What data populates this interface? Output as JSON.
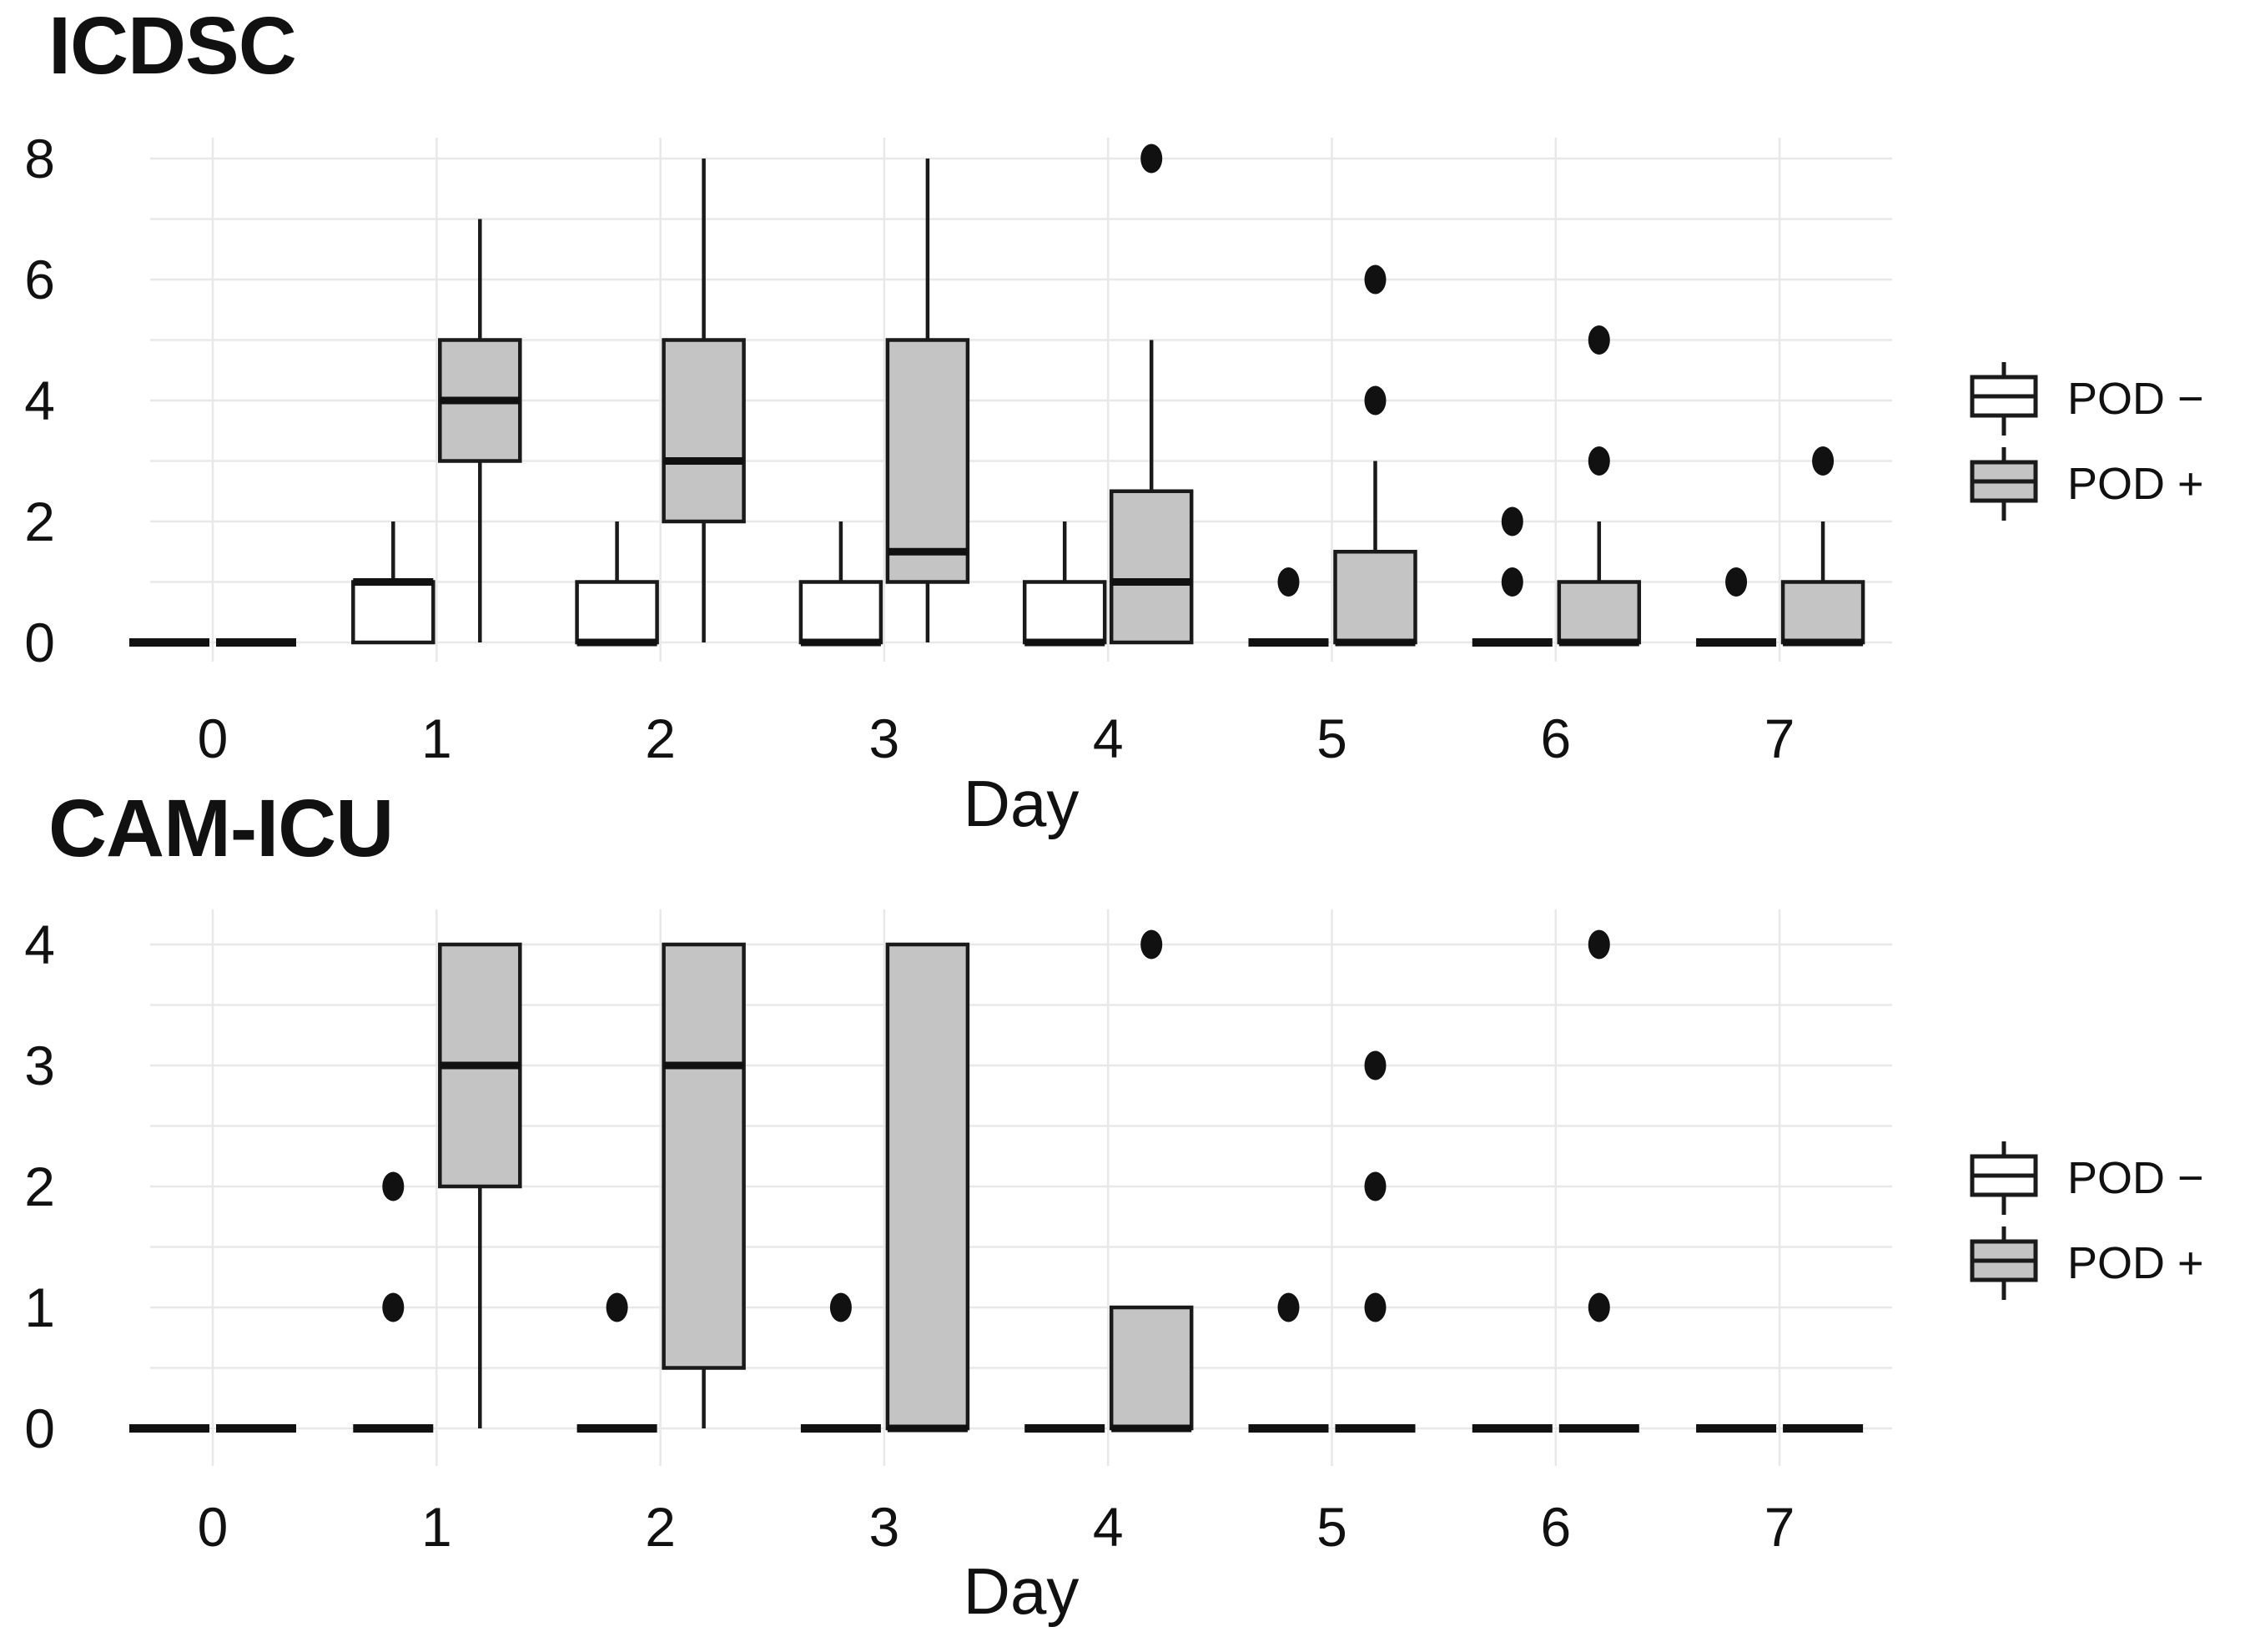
{
  "figure": {
    "background": "#ffffff"
  },
  "colors": {
    "pod_neg_fill": "#ffffff",
    "pod_pos_fill": "#c4c4c4",
    "box_border": "#1a1a1a",
    "median": "#111111",
    "outlier": "#111111",
    "grid": "#e8e8e8",
    "text": "#111111"
  },
  "legend": {
    "items": [
      {
        "label": "POD −",
        "fill": "#ffffff"
      },
      {
        "label": "POD +",
        "fill": "#c4c4c4"
      }
    ]
  },
  "chart_data": [
    {
      "type": "boxplot",
      "title": "ICDSC",
      "xlabel": "Day",
      "categories": [
        "0",
        "1",
        "2",
        "3",
        "4",
        "5",
        "6",
        "7"
      ],
      "ylim": [
        0,
        8
      ],
      "yticks": [
        0,
        2,
        4,
        6,
        8
      ],
      "grid_step": 1,
      "grid": true,
      "legend_position": "right",
      "series": [
        {
          "name": "POD −",
          "fill": "#ffffff",
          "boxes": [
            {
              "low": 0,
              "q1": 0,
              "med": 0,
              "q3": 0,
              "high": 0,
              "outliers": []
            },
            {
              "low": 0,
              "q1": 0,
              "med": 1,
              "q3": 1,
              "high": 2,
              "outliers": []
            },
            {
              "low": 0,
              "q1": 0,
              "med": 0,
              "q3": 1,
              "high": 2,
              "outliers": []
            },
            {
              "low": 0,
              "q1": 0,
              "med": 0,
              "q3": 1,
              "high": 2,
              "outliers": []
            },
            {
              "low": 0,
              "q1": 0,
              "med": 0,
              "q3": 1,
              "high": 2,
              "outliers": []
            },
            {
              "low": 0,
              "q1": 0,
              "med": 0,
              "q3": 0,
              "high": 0,
              "outliers": [
                1
              ]
            },
            {
              "low": 0,
              "q1": 0,
              "med": 0,
              "q3": 0,
              "high": 0,
              "outliers": [
                1,
                2
              ]
            },
            {
              "low": 0,
              "q1": 0,
              "med": 0,
              "q3": 0,
              "high": 0,
              "outliers": [
                1
              ]
            }
          ]
        },
        {
          "name": "POD +",
          "fill": "#c4c4c4",
          "boxes": [
            {
              "low": 0,
              "q1": 0,
              "med": 0,
              "q3": 0,
              "high": 0,
              "outliers": []
            },
            {
              "low": 0,
              "q1": 3,
              "med": 4,
              "q3": 5,
              "high": 7,
              "outliers": []
            },
            {
              "low": 0,
              "q1": 2,
              "med": 3,
              "q3": 5,
              "high": 8,
              "outliers": []
            },
            {
              "low": 0,
              "q1": 1,
              "med": 1.5,
              "q3": 5,
              "high": 8,
              "outliers": []
            },
            {
              "low": 0,
              "q1": 0,
              "med": 1,
              "q3": 2.5,
              "high": 5,
              "outliers": [
                8
              ]
            },
            {
              "low": 0,
              "q1": 0,
              "med": 0,
              "q3": 1.5,
              "high": 3,
              "outliers": [
                4,
                6
              ]
            },
            {
              "low": 0,
              "q1": 0,
              "med": 0,
              "q3": 1,
              "high": 2,
              "outliers": [
                3,
                5
              ]
            },
            {
              "low": 0,
              "q1": 0,
              "med": 0,
              "q3": 1,
              "high": 2,
              "outliers": [
                3
              ]
            }
          ]
        }
      ]
    },
    {
      "type": "boxplot",
      "title": "CAM-ICU",
      "xlabel": "Day",
      "categories": [
        "0",
        "1",
        "2",
        "3",
        "4",
        "5",
        "6",
        "7"
      ],
      "ylim": [
        0,
        4
      ],
      "yticks": [
        0,
        1,
        2,
        3,
        4
      ],
      "grid_step": 0.5,
      "grid": true,
      "legend_position": "right",
      "series": [
        {
          "name": "POD −",
          "fill": "#ffffff",
          "boxes": [
            {
              "low": 0,
              "q1": 0,
              "med": 0,
              "q3": 0,
              "high": 0,
              "outliers": []
            },
            {
              "low": 0,
              "q1": 0,
              "med": 0,
              "q3": 0,
              "high": 0,
              "outliers": [
                1,
                2
              ]
            },
            {
              "low": 0,
              "q1": 0,
              "med": 0,
              "q3": 0,
              "high": 0,
              "outliers": [
                1
              ]
            },
            {
              "low": 0,
              "q1": 0,
              "med": 0,
              "q3": 0,
              "high": 0,
              "outliers": [
                1
              ]
            },
            {
              "low": 0,
              "q1": 0,
              "med": 0,
              "q3": 0,
              "high": 0,
              "outliers": []
            },
            {
              "low": 0,
              "q1": 0,
              "med": 0,
              "q3": 0,
              "high": 0,
              "outliers": [
                1
              ]
            },
            {
              "low": 0,
              "q1": 0,
              "med": 0,
              "q3": 0,
              "high": 0,
              "outliers": []
            },
            {
              "low": 0,
              "q1": 0,
              "med": 0,
              "q3": 0,
              "high": 0,
              "outliers": []
            }
          ]
        },
        {
          "name": "POD +",
          "fill": "#c4c4c4",
          "boxes": [
            {
              "low": 0,
              "q1": 0,
              "med": 0,
              "q3": 0,
              "high": 0,
              "outliers": []
            },
            {
              "low": 0,
              "q1": 2,
              "med": 3,
              "q3": 4,
              "high": 4,
              "outliers": []
            },
            {
              "low": 0,
              "q1": 0.5,
              "med": 3,
              "q3": 4,
              "high": 4,
              "outliers": []
            },
            {
              "low": 0,
              "q1": 0,
              "med": 0,
              "q3": 4,
              "high": 4,
              "outliers": []
            },
            {
              "low": 0,
              "q1": 0,
              "med": 0,
              "q3": 1,
              "high": 1,
              "outliers": [
                4
              ]
            },
            {
              "low": 0,
              "q1": 0,
              "med": 0,
              "q3": 0,
              "high": 0,
              "outliers": [
                1,
                2,
                3
              ]
            },
            {
              "low": 0,
              "q1": 0,
              "med": 0,
              "q3": 0,
              "high": 0,
              "outliers": [
                1,
                4
              ]
            },
            {
              "low": 0,
              "q1": 0,
              "med": 0,
              "q3": 0,
              "high": 0,
              "outliers": []
            }
          ]
        }
      ]
    }
  ]
}
